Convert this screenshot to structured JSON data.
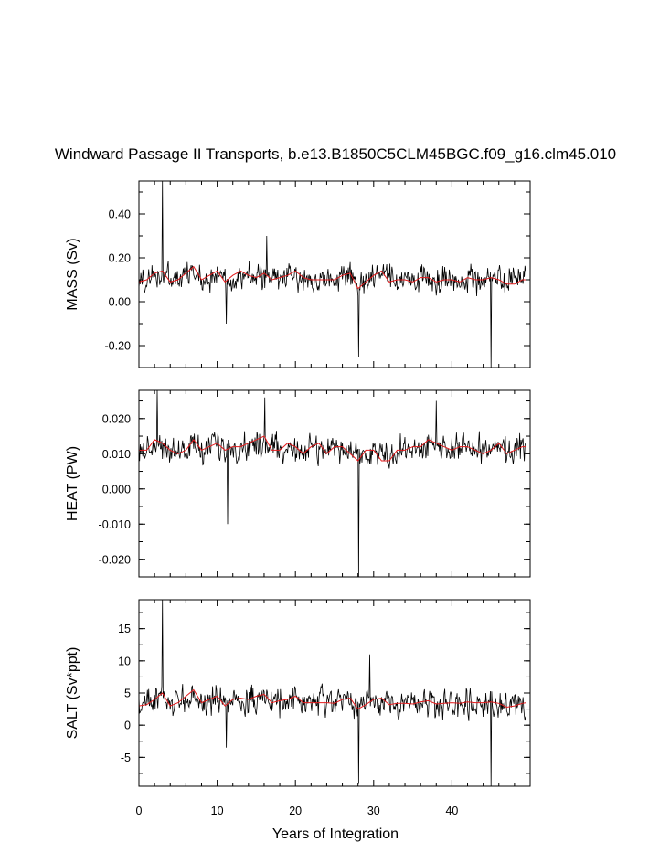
{
  "chart_data": {
    "type": "line",
    "title": "Windward Passage II Transports, b.e13.B1850C5CLM45BGC.f09_g16.clm45.010",
    "xlabel": "Years of Integration",
    "x_ticks": [
      "0",
      "10",
      "20",
      "30",
      "40"
    ],
    "x_tick_values": [
      0,
      10,
      20,
      30,
      40
    ],
    "xlim": [
      0,
      50
    ],
    "panels": [
      {
        "name": "mass",
        "ylabel": "MASS (Sv)",
        "ylim": [
          -0.3,
          0.55
        ],
        "y_tick_values": [
          -0.2,
          0.0,
          0.2,
          0.4
        ],
        "y_tick_labels": [
          "-0.20",
          "0.00",
          "0.20",
          "0.40"
        ],
        "colors": {
          "raw": "#000000",
          "smooth": "#e41a1c"
        },
        "mean": 0.1,
        "raw_amplitude": 0.085,
        "spikes": [
          [
            3.0,
            0.55
          ],
          [
            28.1,
            -0.25
          ],
          [
            45.0,
            -0.3
          ],
          [
            11.2,
            -0.1
          ],
          [
            16.3,
            0.3
          ]
        ],
        "smooth": [
          [
            0,
            0.09
          ],
          [
            1,
            0.1
          ],
          [
            2,
            0.13
          ],
          [
            3,
            0.14
          ],
          [
            4,
            0.09
          ],
          [
            5,
            0.1
          ],
          [
            6,
            0.13
          ],
          [
            7,
            0.16
          ],
          [
            8,
            0.1
          ],
          [
            9,
            0.12
          ],
          [
            10,
            0.14
          ],
          [
            11,
            0.09
          ],
          [
            12,
            0.12
          ],
          [
            13,
            0.14
          ],
          [
            14,
            0.12
          ],
          [
            15,
            0.11
          ],
          [
            16,
            0.13
          ],
          [
            17,
            0.1
          ],
          [
            18,
            0.11
          ],
          [
            19,
            0.12
          ],
          [
            20,
            0.14
          ],
          [
            21,
            0.11
          ],
          [
            22,
            0.1
          ],
          [
            23,
            0.1
          ],
          [
            24,
            0.1
          ],
          [
            25,
            0.1
          ],
          [
            26,
            0.12
          ],
          [
            27,
            0.13
          ],
          [
            28,
            0.06
          ],
          [
            29,
            0.09
          ],
          [
            30,
            0.12
          ],
          [
            31,
            0.14
          ],
          [
            32,
            0.09
          ],
          [
            33,
            0.1
          ],
          [
            34,
            0.1
          ],
          [
            35,
            0.09
          ],
          [
            36,
            0.11
          ],
          [
            37,
            0.11
          ],
          [
            38,
            0.09
          ],
          [
            39,
            0.1
          ],
          [
            40,
            0.1
          ],
          [
            41,
            0.09
          ],
          [
            42,
            0.11
          ],
          [
            43,
            0.1
          ],
          [
            44,
            0.1
          ],
          [
            45,
            0.11
          ],
          [
            46,
            0.1
          ],
          [
            47,
            0.08
          ],
          [
            48,
            0.08
          ],
          [
            49,
            0.1
          ],
          [
            49.5,
            0.1
          ]
        ]
      },
      {
        "name": "heat",
        "ylabel": "HEAT (PW)",
        "ylim": [
          -0.025,
          0.028
        ],
        "y_tick_values": [
          -0.02,
          -0.01,
          0.0,
          0.01,
          0.02
        ],
        "y_tick_labels": [
          "-0.020",
          "-0.010",
          "0.000",
          "0.010",
          "0.020"
        ],
        "colors": {
          "raw": "#000000",
          "smooth": "#e41a1c"
        },
        "mean": 0.011,
        "raw_amplitude": 0.0055,
        "spikes": [
          [
            2.3,
            0.028
          ],
          [
            11.3,
            -0.01
          ],
          [
            28.1,
            -0.025
          ],
          [
            16.1,
            0.026
          ],
          [
            38.0,
            0.025
          ]
        ],
        "smooth": [
          [
            0,
            0.011
          ],
          [
            1,
            0.011
          ],
          [
            2,
            0.014
          ],
          [
            3,
            0.013
          ],
          [
            4,
            0.011
          ],
          [
            5,
            0.01
          ],
          [
            6,
            0.011
          ],
          [
            7,
            0.014
          ],
          [
            8,
            0.011
          ],
          [
            9,
            0.012
          ],
          [
            10,
            0.013
          ],
          [
            11,
            0.011
          ],
          [
            12,
            0.012
          ],
          [
            13,
            0.012
          ],
          [
            14,
            0.013
          ],
          [
            15,
            0.014
          ],
          [
            16,
            0.015
          ],
          [
            17,
            0.011
          ],
          [
            18,
            0.011
          ],
          [
            19,
            0.013
          ],
          [
            20,
            0.012
          ],
          [
            21,
            0.01
          ],
          [
            22,
            0.012
          ],
          [
            23,
            0.013
          ],
          [
            24,
            0.01
          ],
          [
            25,
            0.012
          ],
          [
            26,
            0.012
          ],
          [
            27,
            0.01
          ],
          [
            28,
            0.008
          ],
          [
            29,
            0.011
          ],
          [
            30,
            0.011
          ],
          [
            31,
            0.008
          ],
          [
            32,
            0.008
          ],
          [
            33,
            0.011
          ],
          [
            34,
            0.011
          ],
          [
            35,
            0.012
          ],
          [
            36,
            0.012
          ],
          [
            37,
            0.014
          ],
          [
            38,
            0.013
          ],
          [
            39,
            0.012
          ],
          [
            40,
            0.011
          ],
          [
            41,
            0.012
          ],
          [
            42,
            0.012
          ],
          [
            43,
            0.011
          ],
          [
            44,
            0.01
          ],
          [
            45,
            0.011
          ],
          [
            46,
            0.013
          ],
          [
            47,
            0.01
          ],
          [
            48,
            0.011
          ],
          [
            49,
            0.012
          ],
          [
            49.5,
            0.012
          ]
        ]
      },
      {
        "name": "salt",
        "ylabel": "SALT (Sv*ppt)",
        "ylim": [
          -9.5,
          19.5
        ],
        "y_tick_values": [
          -5,
          0,
          5,
          10,
          15
        ],
        "y_tick_labels": [
          "-5",
          "0",
          "5",
          "10",
          "15"
        ],
        "colors": {
          "raw": "#000000",
          "smooth": "#e41a1c"
        },
        "mean": 3.5,
        "raw_amplitude": 2.9,
        "spikes": [
          [
            3.0,
            19.5
          ],
          [
            28.1,
            -9.0
          ],
          [
            45.0,
            -9.5
          ],
          [
            29.5,
            11.0
          ],
          [
            11.2,
            -3.5
          ]
        ],
        "smooth": [
          [
            0,
            3.0
          ],
          [
            1,
            3.2
          ],
          [
            2,
            4.0
          ],
          [
            3,
            5.0
          ],
          [
            4,
            3.0
          ],
          [
            5,
            3.5
          ],
          [
            6,
            4.5
          ],
          [
            7,
            5.5
          ],
          [
            8,
            3.5
          ],
          [
            9,
            4.0
          ],
          [
            10,
            4.5
          ],
          [
            11,
            3.0
          ],
          [
            12,
            4.0
          ],
          [
            13,
            4.2
          ],
          [
            14,
            4.0
          ],
          [
            15,
            4.5
          ],
          [
            16,
            4.8
          ],
          [
            17,
            3.5
          ],
          [
            18,
            3.8
          ],
          [
            19,
            4.0
          ],
          [
            20,
            4.5
          ],
          [
            21,
            3.5
          ],
          [
            22,
            3.5
          ],
          [
            23,
            3.5
          ],
          [
            24,
            3.5
          ],
          [
            25,
            3.4
          ],
          [
            26,
            4.0
          ],
          [
            27,
            4.2
          ],
          [
            28,
            2.5
          ],
          [
            29,
            3.2
          ],
          [
            30,
            4.0
          ],
          [
            31,
            4.2
          ],
          [
            32,
            3.2
          ],
          [
            33,
            3.4
          ],
          [
            34,
            3.4
          ],
          [
            35,
            3.3
          ],
          [
            36,
            3.6
          ],
          [
            37,
            3.8
          ],
          [
            38,
            3.3
          ],
          [
            39,
            3.4
          ],
          [
            40,
            3.5
          ],
          [
            41,
            3.4
          ],
          [
            42,
            3.6
          ],
          [
            43,
            3.5
          ],
          [
            44,
            3.5
          ],
          [
            45,
            3.6
          ],
          [
            46,
            3.4
          ],
          [
            47,
            2.8
          ],
          [
            48,
            3.0
          ],
          [
            49,
            3.4
          ],
          [
            49.5,
            3.5
          ]
        ]
      }
    ]
  }
}
